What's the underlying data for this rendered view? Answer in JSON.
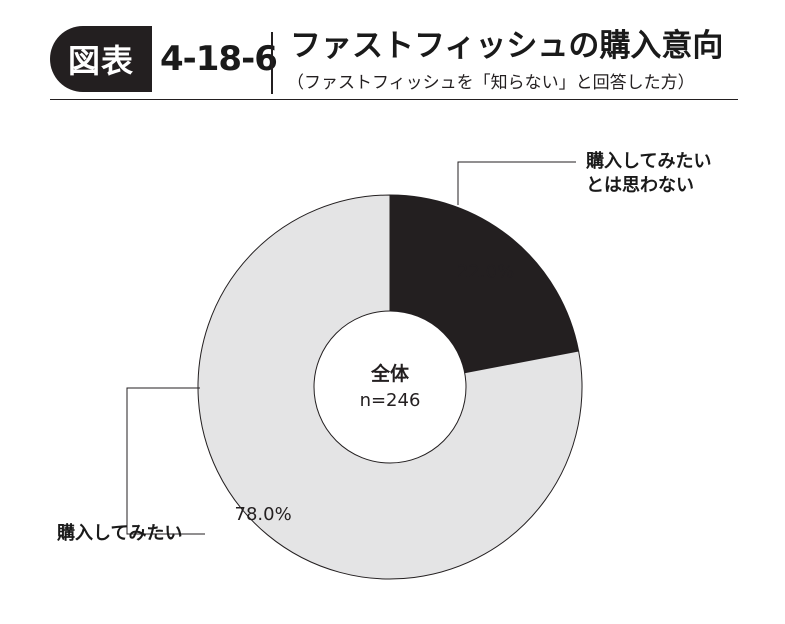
{
  "header": {
    "badge_label": "図表",
    "figure_number": "4-18-6",
    "title": "ファストフィッシュの購入意向",
    "subtitle": "（ファストフィッシュを「知らない」と回答した方）"
  },
  "chart_data": {
    "type": "pie",
    "variant": "donut",
    "center_label": "全体",
    "center_sub": "n=246",
    "slices": [
      {
        "label": "購入してみたいとは思わない",
        "label_lines": [
          "購入してみたい",
          "とは思わない"
        ],
        "value": 22.0,
        "value_label": "22.0%",
        "color": "#231f20",
        "text_color": "#ffffff"
      },
      {
        "label": "購入してみたい",
        "label_lines": [
          "購入してみたい"
        ],
        "value": 78.0,
        "value_label": "78.0%",
        "color": "#e4e4e5",
        "text_color": "#231f20"
      }
    ],
    "start_angle_deg": 0,
    "direction": "clockwise"
  }
}
